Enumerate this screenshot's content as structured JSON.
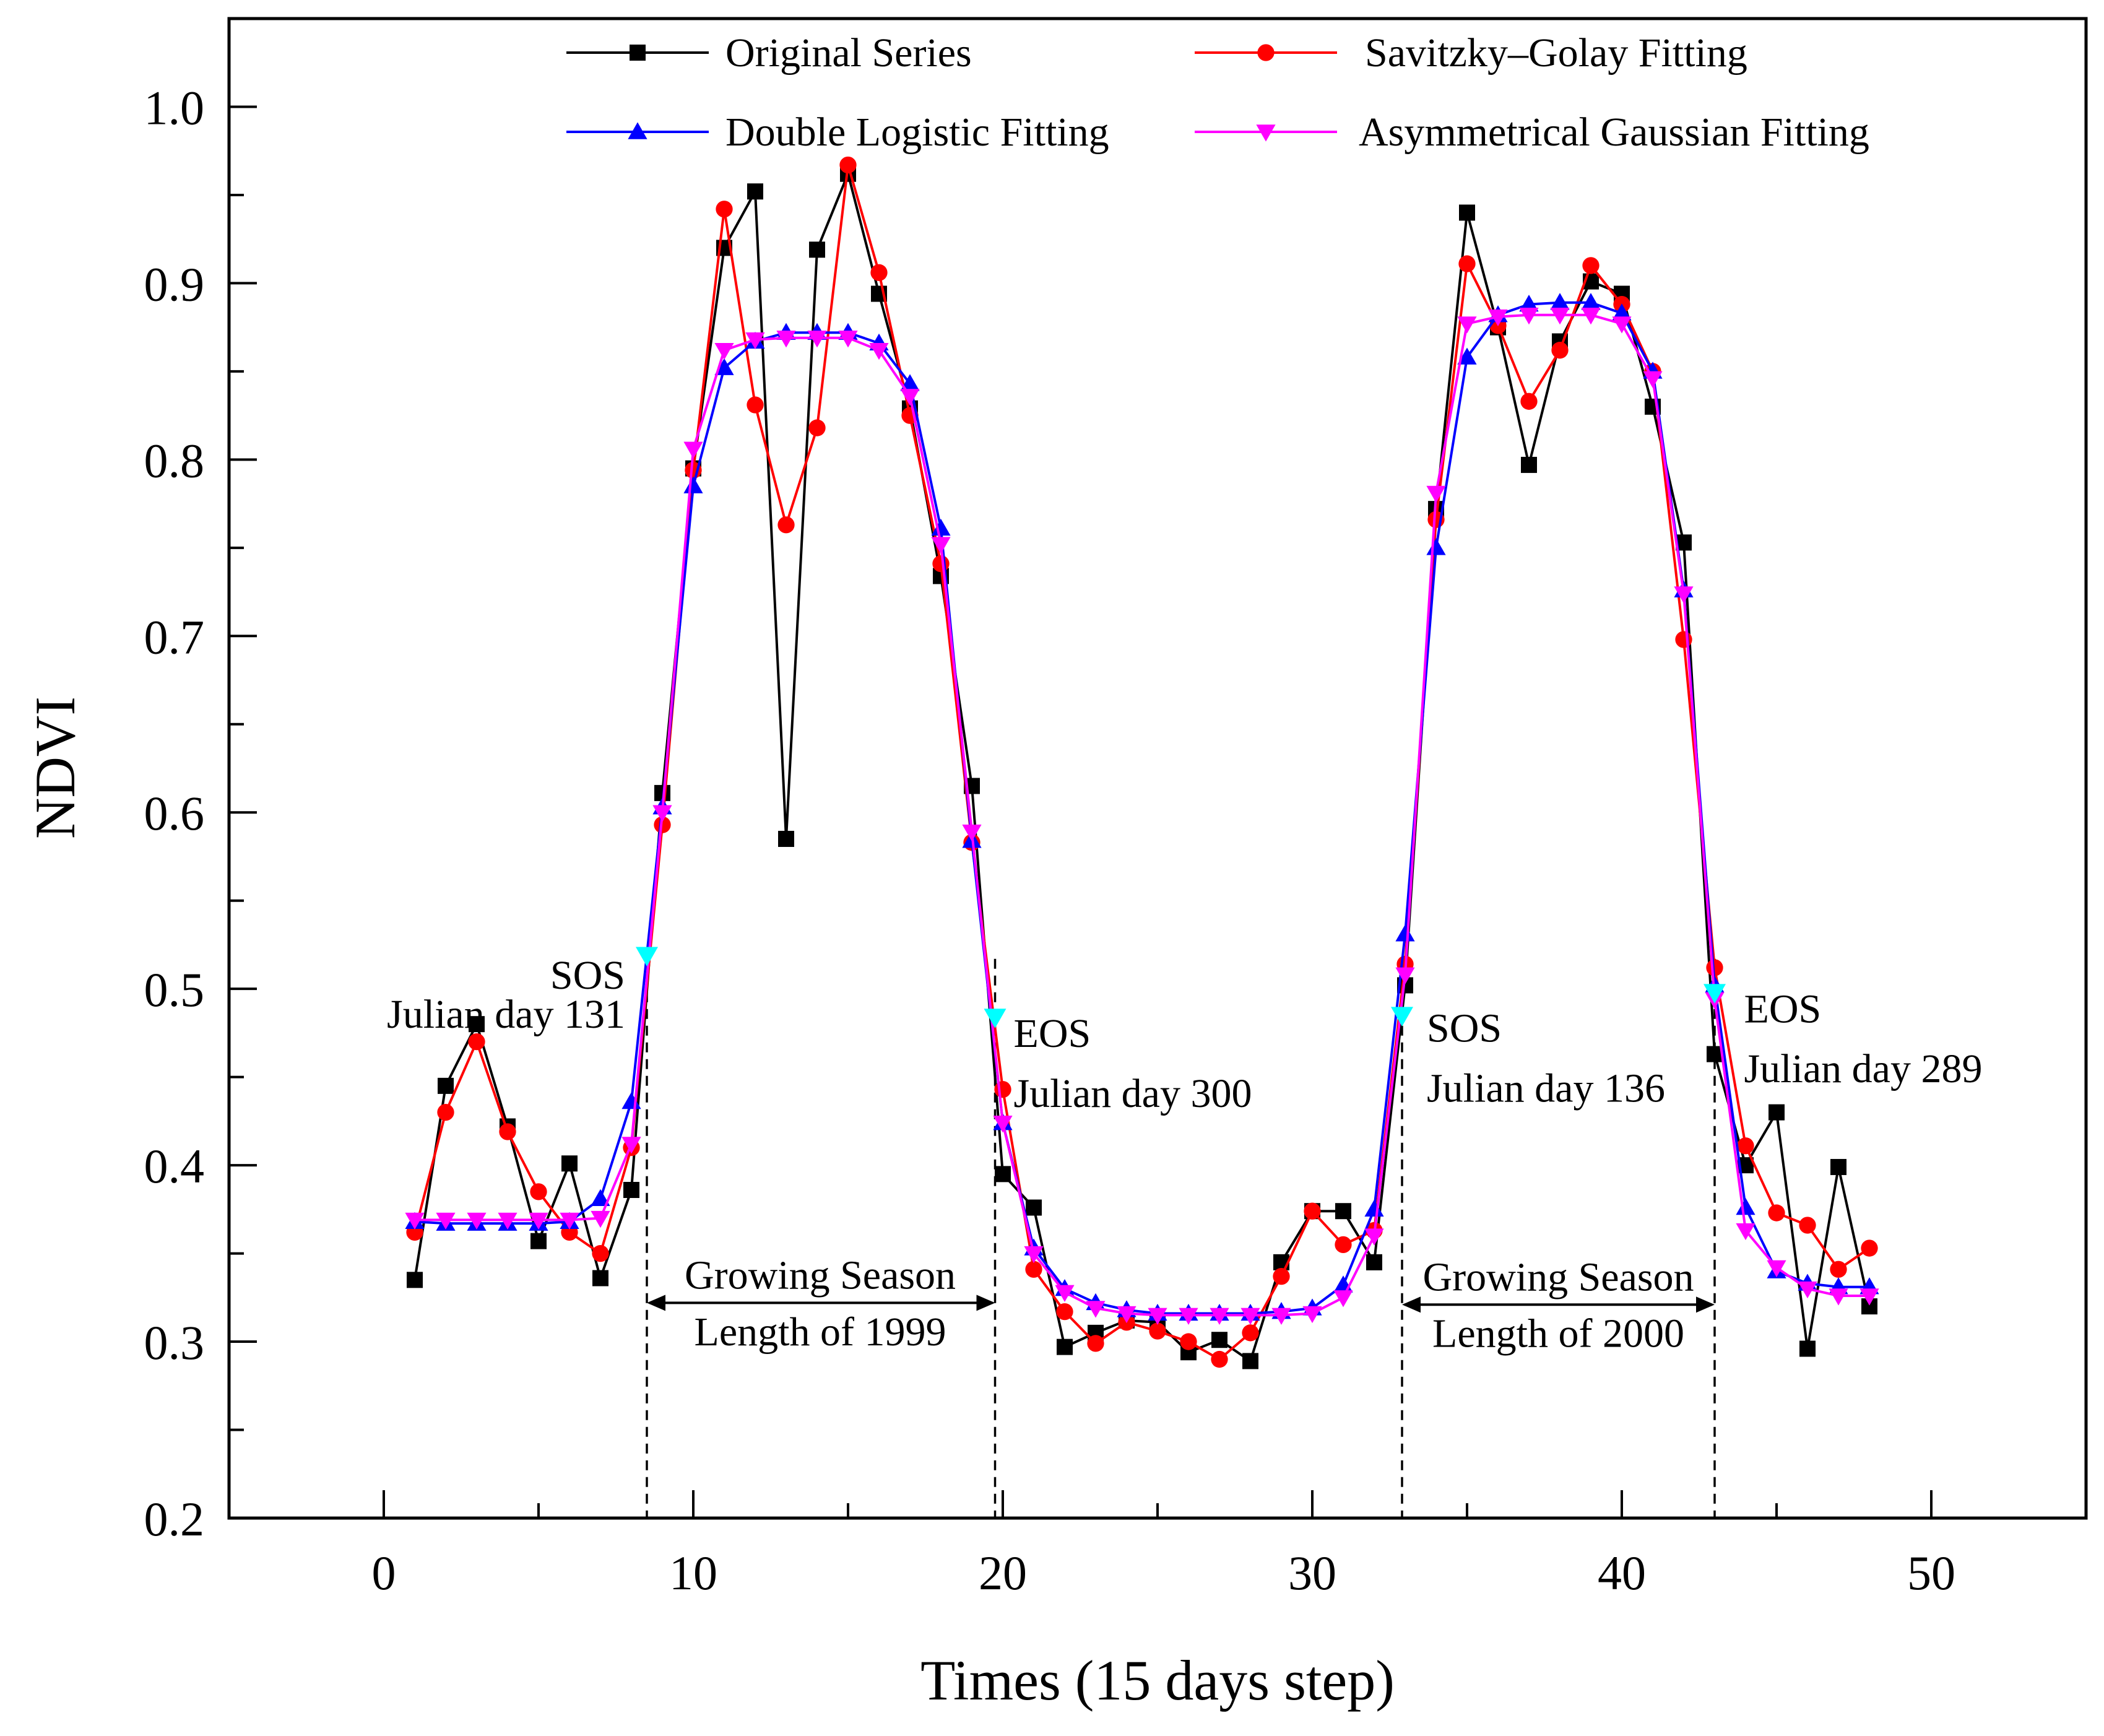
{
  "chart_data": {
    "type": "line",
    "title": "",
    "xlabel": "Times (15 days step)",
    "ylabel": "NDVI",
    "xlim": [
      -5,
      55
    ],
    "ylim": [
      0.2,
      1.05
    ],
    "xticks": [
      0,
      10,
      20,
      30,
      40,
      50
    ],
    "yticks": [
      0.2,
      0.3,
      0.4,
      0.5,
      0.6,
      0.7,
      0.8,
      0.9,
      1.0
    ],
    "x_tick_labels": [
      "0",
      "10",
      "20",
      "30",
      "40",
      "50"
    ],
    "y_tick_labels": [
      "0.2",
      "0.3",
      "0.4",
      "0.5",
      "0.6",
      "0.7",
      "0.8",
      "0.9",
      "1.0"
    ],
    "grid": false,
    "legend_position": "top",
    "x": [
      1,
      2,
      3,
      4,
      5,
      6,
      7,
      8,
      9,
      10,
      11,
      12,
      13,
      14,
      15,
      16,
      17,
      18,
      19,
      20,
      21,
      22,
      23,
      24,
      25,
      26,
      27,
      28,
      29,
      30,
      31,
      32,
      33,
      34,
      35,
      36,
      37,
      38,
      39,
      40,
      41,
      42,
      43,
      44,
      45,
      46,
      47,
      48
    ],
    "series": [
      {
        "name": "Original Series",
        "color": "#000000",
        "marker": "square",
        "values": [
          0.335,
          0.445,
          0.48,
          0.422,
          0.357,
          0.401,
          0.336,
          0.386,
          0.611,
          0.795,
          0.92,
          0.952,
          0.585,
          0.919,
          0.962,
          0.894,
          0.829,
          0.734,
          0.615,
          0.395,
          0.376,
          0.297,
          0.305,
          0.312,
          0.311,
          0.294,
          0.301,
          0.289,
          0.345,
          0.374,
          0.374,
          0.345,
          0.502,
          0.772,
          0.94,
          0.875,
          0.797,
          0.867,
          0.901,
          0.894,
          0.83,
          0.753,
          0.463,
          0.4,
          0.43,
          0.296,
          0.399,
          0.32
        ]
      },
      {
        "name": "Savitzky–Golay Fitting",
        "color": "#ff0000",
        "marker": "circle",
        "values": [
          0.362,
          0.43,
          0.47,
          0.419,
          0.385,
          0.362,
          0.35,
          0.41,
          0.593,
          0.794,
          0.942,
          0.831,
          0.763,
          0.818,
          0.967,
          0.906,
          0.825,
          0.741,
          0.583,
          0.443,
          0.341,
          0.317,
          0.299,
          0.311,
          0.306,
          0.3,
          0.29,
          0.305,
          0.337,
          0.374,
          0.355,
          0.363,
          0.514,
          0.766,
          0.911,
          0.876,
          0.833,
          0.862,
          0.91,
          0.888,
          0.85,
          0.698,
          0.512,
          0.411,
          0.373,
          0.366,
          0.341,
          0.353
        ]
      },
      {
        "name": "Double Logistic Fitting",
        "color": "#0000ff",
        "marker": "triangle-up",
        "values": [
          0.368,
          0.367,
          0.367,
          0.367,
          0.367,
          0.368,
          0.381,
          0.436,
          0.603,
          0.785,
          0.852,
          0.867,
          0.872,
          0.872,
          0.872,
          0.866,
          0.843,
          0.761,
          0.584,
          0.424,
          0.353,
          0.33,
          0.322,
          0.318,
          0.316,
          0.316,
          0.316,
          0.316,
          0.317,
          0.319,
          0.332,
          0.375,
          0.531,
          0.75,
          0.858,
          0.882,
          0.888,
          0.889,
          0.889,
          0.883,
          0.85,
          0.726,
          0.502,
          0.376,
          0.34,
          0.333,
          0.331,
          0.331
        ]
      },
      {
        "name": "Asymmetrical Gaussian Fitting",
        "color": "#ff00ff",
        "marker": "triangle-down",
        "values": [
          0.369,
          0.369,
          0.369,
          0.369,
          0.369,
          0.369,
          0.37,
          0.412,
          0.6,
          0.806,
          0.862,
          0.868,
          0.869,
          0.869,
          0.869,
          0.862,
          0.836,
          0.752,
          0.589,
          0.424,
          0.35,
          0.328,
          0.319,
          0.316,
          0.315,
          0.315,
          0.315,
          0.315,
          0.315,
          0.316,
          0.325,
          0.36,
          0.508,
          0.781,
          0.877,
          0.881,
          0.882,
          0.882,
          0.882,
          0.877,
          0.846,
          0.724,
          0.494,
          0.363,
          0.342,
          0.33,
          0.326,
          0.326
        ]
      }
    ],
    "phenology_markers": [
      {
        "x": 8.5,
        "y": 0.519,
        "color": "#00ffff",
        "marker": "triangle-down"
      },
      {
        "x": 19.75,
        "y": 0.484,
        "color": "#00ffff",
        "marker": "triangle-down"
      },
      {
        "x": 32.9,
        "y": 0.485,
        "color": "#00ffff",
        "marker": "triangle-down"
      },
      {
        "x": 43.0,
        "y": 0.498,
        "color": "#00ffff",
        "marker": "triangle-down"
      }
    ],
    "season_lines": [
      8.5,
      19.75,
      32.9,
      43.0
    ],
    "season_arrows": [
      {
        "from": 8.5,
        "to": 19.75,
        "y": 0.322
      },
      {
        "from": 32.9,
        "to": 43.0,
        "y": 0.321
      }
    ],
    "annotations": [
      {
        "name": "sos-1-label",
        "text": "SOS",
        "x": 7.8,
        "y": 0.5,
        "anchor": "end"
      },
      {
        "name": "sos-1-day",
        "text": "Julian day 131",
        "x": 7.8,
        "y": 0.478,
        "anchor": "end"
      },
      {
        "name": "eos-1-label",
        "text": "EOS",
        "x": 20.35,
        "y": 0.467,
        "anchor": "start"
      },
      {
        "name": "eos-1-day",
        "text": "Julian day 300",
        "x": 20.35,
        "y": 0.433,
        "anchor": "start"
      },
      {
        "name": "sos-2-label",
        "text": "SOS",
        "x": 33.7,
        "y": 0.47,
        "anchor": "start"
      },
      {
        "name": "sos-2-day",
        "text": "Julian day 136",
        "x": 33.7,
        "y": 0.436,
        "anchor": "start"
      },
      {
        "name": "eos-2-label",
        "text": "EOS",
        "x": 43.95,
        "y": 0.481,
        "anchor": "start"
      },
      {
        "name": "eos-2-day",
        "text": "Julian day 289",
        "x": 43.95,
        "y": 0.447,
        "anchor": "start"
      },
      {
        "name": "growing-season-1-line1",
        "text": "Growing Season",
        "x": 14.1,
        "y": 0.33,
        "anchor": "middle"
      },
      {
        "name": "growing-season-1-line2",
        "text": "Length of 1999",
        "x": 14.1,
        "y": 0.298,
        "anchor": "middle"
      },
      {
        "name": "growing-season-2-line1",
        "text": "Growing Season",
        "x": 37.95,
        "y": 0.329,
        "anchor": "middle"
      },
      {
        "name": "growing-season-2-line2",
        "text": "Length of 2000",
        "x": 37.95,
        "y": 0.297,
        "anchor": "middle"
      }
    ]
  }
}
